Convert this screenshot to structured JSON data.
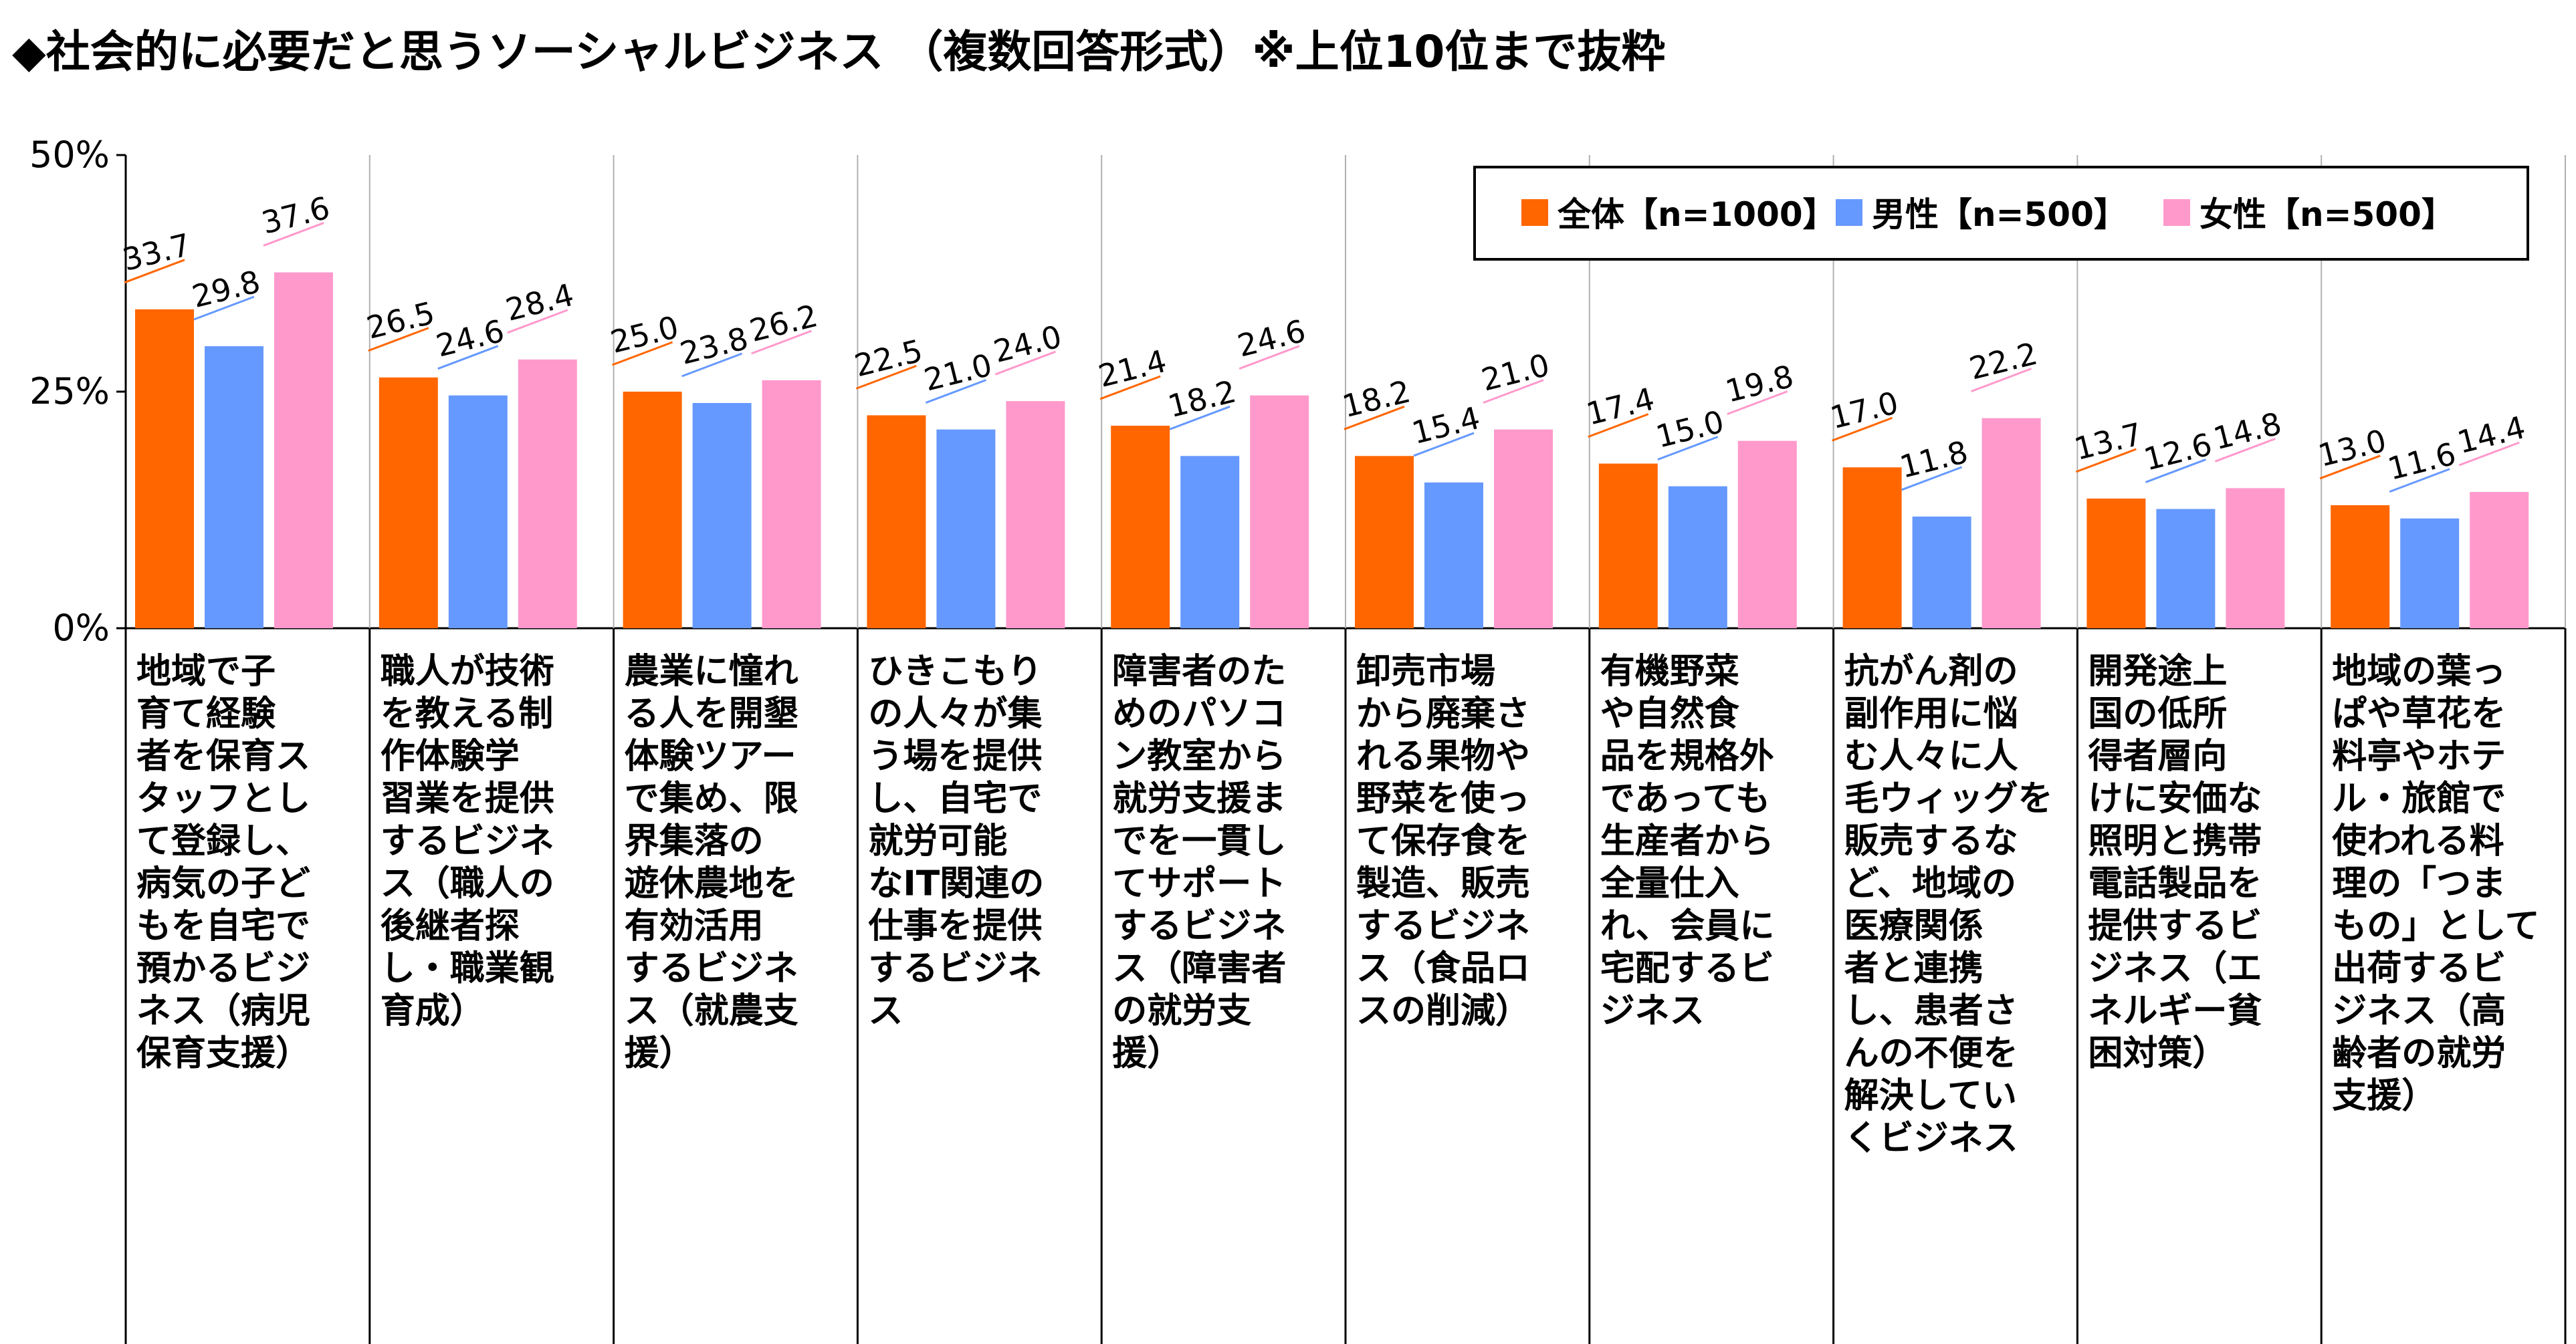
{
  "title": "◆社会的に必要だと思うソーシャルビジネス （複数回答形式）※上位10位まで抜粋",
  "chart_data": {
    "type": "bar",
    "title": "◆社会的に必要だと思うソーシャルビジネス （複数回答形式）※上位10位まで抜粋",
    "xlabel": "",
    "ylabel": "",
    "ylim": [
      0,
      50
    ],
    "yticks": [
      "50%",
      "25%",
      "0%"
    ],
    "ytick_values": [
      50,
      25,
      0
    ],
    "grid": false,
    "legend_position": "top-right",
    "categories": [
      "地域で子育て経験者を保育スタッフとして登録し、病気の子どもを自宅で預かるビジネス（病児保育支援）",
      "職人が技術を教える制作体験学習業を提供するビジネス（職人の後継者探し・職業観育成）",
      "農業に憧れる人を開墾体験ツアーで集め、限界集落の遊休農地を有効活用するビジネス（就農支援）",
      "ひきこもりの人々が集う場を提供し、自宅で就労可能なIT関連の仕事を提供するビジネス",
      "障害者のためのパソコン教室から就労支援までを一貫してサポートするビジネス（障害者の就労支援）",
      "卸売市場から廃棄される果物や野菜を使って保存食を製造、販売するビジネス（食品ロスの削減）",
      "有機野菜や自然食品を規格外であっても生産者から全量仕入れ、会員に宅配するビジネス",
      "抗がん剤の副作用に悩む人々に人毛ウィッグを販売するなど、地域の医療関係者と連携し、患者さんの不便を解決していくビジネス",
      "開発途上国の低所得者層向けに安価な照明と携帯電話製品を提供するビジネス（エネルギー貧困対策）",
      "地域の葉っぱや草花を料亭やホテル・旅館で使われる料理の「つまもの」として出荷するビジネス（高齢者の就労支援）"
    ],
    "category_lines": [
      [
        "地域で子",
        "育て経験",
        "者を保育ス",
        "タッフとし",
        "て登録し、",
        "病気の子ど",
        "もを自宅で",
        "預かるビジ",
        "ネス（病児",
        "保育支援）"
      ],
      [
        "職人が技術",
        "を教える制",
        "作体験学",
        "習業を提供",
        "するビジネ",
        "ス（職人の",
        "後継者探",
        "し・職業観",
        "育成）"
      ],
      [
        "農業に憧れ",
        "る人を開墾",
        "体験ツアー",
        "で集め、限",
        "界集落の",
        "遊休農地を",
        "有効活用",
        "するビジネ",
        "ス（就農支",
        "援）"
      ],
      [
        "ひきこもり",
        "の人々が集",
        "う場を提供",
        "し、自宅で",
        "就労可能",
        "なIT関連の",
        "仕事を提供",
        "するビジネ",
        "ス"
      ],
      [
        "障害者のた",
        "めのパソコ",
        "ン教室から",
        "就労支援ま",
        "でを一貫し",
        "てサポート",
        "するビジネ",
        "ス（障害者",
        "の就労支",
        "援）"
      ],
      [
        "卸売市場",
        "から廃棄さ",
        "れる果物や",
        "野菜を使っ",
        "て保存食を",
        "製造、販売",
        "するビジネ",
        "ス（食品ロ",
        "スの削減）"
      ],
      [
        "有機野菜",
        "や自然食",
        "品を規格外",
        "であっても",
        "生産者から",
        "全量仕入",
        "れ、会員に",
        "宅配するビ",
        "ジネス"
      ],
      [
        "抗がん剤の",
        "副作用に悩",
        "む人々に人",
        "毛ウィッグを",
        "販売するな",
        "ど、地域の",
        "医療関係",
        "者と連携",
        "し、患者さ",
        "んの不便を",
        "解決してい",
        "くビジネス"
      ],
      [
        "開発途上",
        "国の低所",
        "得者層向",
        "けに安価な",
        "照明と携帯",
        "電話製品を",
        "提供するビ",
        "ジネス（エ",
        "ネルギー貧",
        "困対策）"
      ],
      [
        "地域の葉っ",
        "ぱや草花を",
        "料亭やホテ",
        "ル・旅館で",
        "使われる料",
        "理の「つま",
        "もの」として",
        "出荷するビ",
        "ジネス（高",
        "齢者の就労",
        "支援）"
      ]
    ],
    "series": [
      {
        "name": "全体【n=1000】",
        "color": "#ff6600",
        "values": [
          33.7,
          26.5,
          25.0,
          22.5,
          21.4,
          18.2,
          17.4,
          17.0,
          13.7,
          13.0
        ]
      },
      {
        "name": "男性【n=500】",
        "color": "#6699ff",
        "values": [
          29.8,
          24.6,
          23.8,
          21.0,
          18.2,
          15.4,
          15.0,
          11.8,
          12.6,
          11.6
        ]
      },
      {
        "name": "女性【n=500】",
        "color": "#ff99cc",
        "values": [
          37.6,
          28.4,
          26.2,
          24.0,
          24.6,
          21.0,
          19.8,
          22.2,
          14.8,
          14.4
        ]
      }
    ],
    "data_labels": [
      [
        "33.7",
        "26.5",
        "25.0",
        "22.5",
        "21.4",
        "18.2",
        "17.4",
        "17.0",
        "13.7",
        "13.0"
      ],
      [
        "29.8",
        "24.6",
        "23.8",
        "21.0",
        "18.2",
        "15.4",
        "15.0",
        "11.8",
        "12.6",
        "11.6"
      ],
      [
        "37.6",
        "28.4",
        "26.2",
        "24.0",
        "24.6",
        "21.0",
        "19.8",
        "22.2",
        "14.8",
        "14.4"
      ]
    ]
  }
}
